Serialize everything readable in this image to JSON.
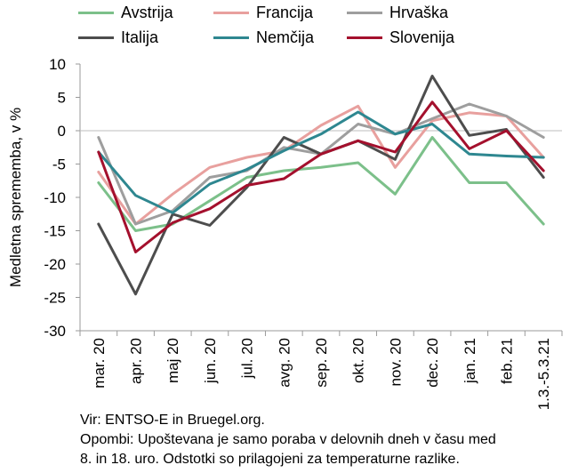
{
  "chart_data": {
    "type": "line",
    "ylabel": "Medletna sprememba, v %",
    "xlabel": "",
    "ylim": [
      -30,
      10
    ],
    "yticks": [
      10,
      5,
      0,
      -5,
      -10,
      -15,
      -20,
      -25,
      -30
    ],
    "grid": false,
    "legend_position": "top",
    "categories": [
      "mar. 20",
      "apr. 20",
      "maj 20",
      "jun. 20",
      "jul. 20",
      "avg. 20",
      "sep. 20",
      "okt. 20",
      "nov. 20",
      "dec. 20",
      "jan. 21",
      "feb. 21",
      "1.3.-5.3.21"
    ],
    "series": [
      {
        "name": "Avstrija",
        "color": "#7cc08a",
        "values": [
          -7.8,
          -15,
          -14,
          -10.5,
          -7,
          -6,
          -5.5,
          -4.8,
          -9.5,
          -1,
          -7.8,
          -7.8,
          -14
        ]
      },
      {
        "name": "Francija",
        "color": "#e8a09e",
        "values": [
          -6.2,
          -14,
          -9.5,
          -5.5,
          -4,
          -3,
          0.8,
          3.7,
          -5.5,
          1.5,
          2.7,
          2.2,
          -4
        ]
      },
      {
        "name": "Hrvaška",
        "color": "#9e9e9e",
        "values": [
          -1,
          -14,
          -12,
          -7,
          -6,
          -2.5,
          -3.5,
          1,
          -0.5,
          1.8,
          4,
          2.2,
          -1
        ]
      },
      {
        "name": "Italija",
        "color": "#4d4d4d",
        "values": [
          -14,
          -24.5,
          -12.5,
          -14.2,
          -8.5,
          -1,
          -3.5,
          -1.5,
          -4.3,
          8.2,
          -0.7,
          0.2,
          -7
        ]
      },
      {
        "name": "Nemčija",
        "color": "#2e8790",
        "values": [
          -3.2,
          -9.7,
          -12.3,
          -8,
          -5.8,
          -3,
          -0.5,
          2.8,
          -0.5,
          1,
          -3.5,
          -3.8,
          -4
        ]
      },
      {
        "name": "Slovenija",
        "color": "#a4102d",
        "values": [
          -3.2,
          -18.2,
          -13.8,
          -11.7,
          -8.2,
          -7.2,
          -3.5,
          -1.5,
          -3.2,
          4.3,
          -2.7,
          0,
          -6
        ]
      }
    ]
  },
  "notes": {
    "source": "Vir: ENTSO-E in Bruegel.org.",
    "remarks_line1": "Opombi: Upoštevana je samo poraba v delovnih dneh v času med",
    "remarks_line2": "8. in 18. uro. Odstotki so prilagojeni za temperaturne razlike."
  }
}
